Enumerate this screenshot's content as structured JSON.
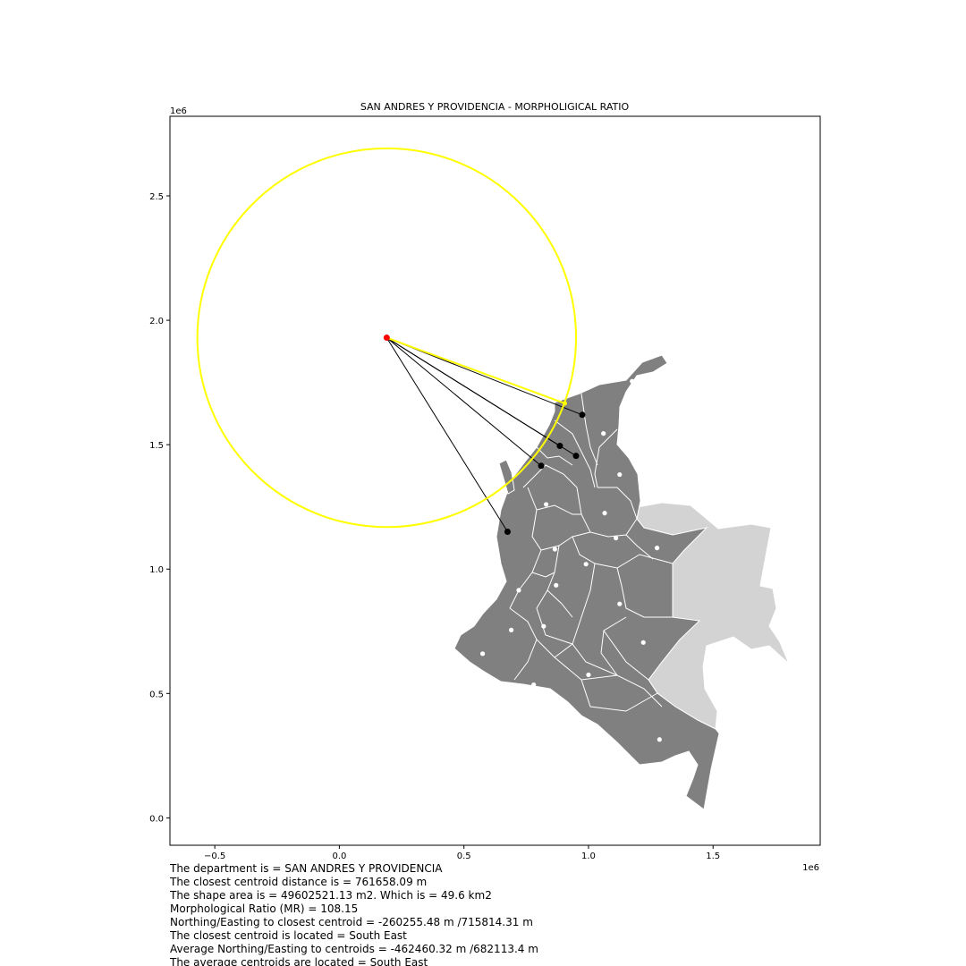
{
  "chart_data": {
    "type": "map",
    "title": "SAN ANDRES Y PROVIDENCIA - MORPHOLIGICAL RATIO",
    "x_offset_label": "1e6",
    "y_offset_label": "1e6",
    "xlim": [
      -0.68,
      1.93
    ],
    "ylim": [
      -0.11,
      2.82
    ],
    "x_ticks": [
      -0.5,
      0.0,
      0.5,
      1.0,
      1.5
    ],
    "x_tick_labels": [
      "−0.5",
      "0.0",
      "0.5",
      "1.0",
      "1.5"
    ],
    "y_ticks": [
      0.0,
      0.5,
      1.0,
      1.5,
      2.0,
      2.5
    ],
    "y_tick_labels": [
      "0.0",
      "0.5",
      "1.0",
      "1.5",
      "2.0",
      "2.5"
    ],
    "colors": {
      "land": "#808080",
      "land_other": "#d3d3d3",
      "borders": "#ffffff",
      "circle": "#ffff00",
      "origin": "#ff0000",
      "target": "#000000",
      "centroid": "#ffffff"
    },
    "origin": [
      0.19,
      1.93
    ],
    "circle_radius": 0.76,
    "closest_centroid": [
      0.905,
      1.666
    ],
    "target_centroids": [
      [
        0.975,
        1.62
      ],
      [
        0.885,
        1.495
      ],
      [
        0.95,
        1.455
      ],
      [
        0.81,
        1.415
      ],
      [
        0.675,
        1.15
      ]
    ],
    "department_centroids": [
      [
        1.175,
        1.755
      ],
      [
        1.06,
        1.545
      ],
      [
        1.125,
        1.38
      ],
      [
        0.83,
        1.26
      ],
      [
        1.065,
        1.225
      ],
      [
        1.11,
        1.125
      ],
      [
        1.275,
        1.085
      ],
      [
        0.865,
        1.08
      ],
      [
        0.99,
        1.02
      ],
      [
        0.72,
        0.915
      ],
      [
        0.87,
        0.935
      ],
      [
        1.125,
        0.86
      ],
      [
        0.69,
        0.755
      ],
      [
        0.82,
        0.77
      ],
      [
        0.575,
        0.66
      ],
      [
        1.22,
        0.705
      ],
      [
        1.0,
        0.575
      ],
      [
        0.78,
        0.535
      ],
      [
        1.285,
        0.315
      ]
    ]
  },
  "info_lines": [
    "The department is = SAN ANDRES Y PROVIDENCIA",
    "The closest centroid distance is = 761658.09 m",
    "The shape area is = 49602521.13 m2. Which is = 49.6 km2",
    "Morphological Ratio (MR) = 108.15",
    "Northing/Easting to closest centroid = -260255.48 m /715814.31 m",
    "The closest centroid is located = South East",
    "Average Northing/Easting to centroids = -462460.32 m /682113.4 m",
    "The average centroids are located = South East"
  ]
}
